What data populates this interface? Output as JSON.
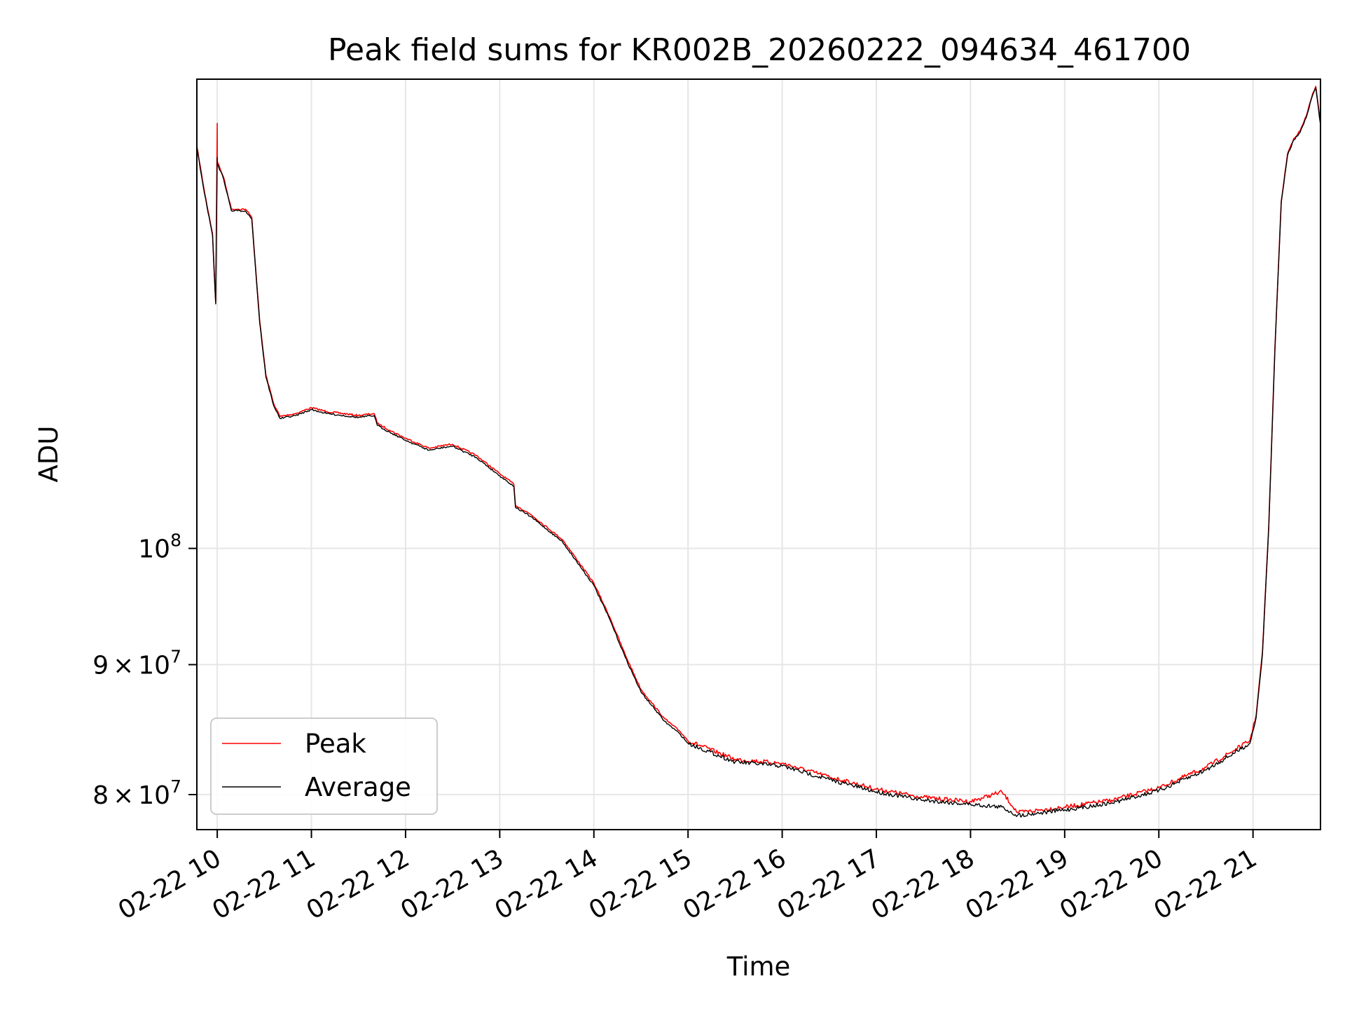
{
  "chart_data": {
    "type": "line",
    "title": "Peak field sums for KR002B_20260222_094634_461700",
    "xlabel": "Time",
    "ylabel": "ADU",
    "x_tick_labels": [
      "02-22 10",
      "02-22 11",
      "02-22 12",
      "02-22 13",
      "02-22 14",
      "02-22 15",
      "02-22 16",
      "02-22 17",
      "02-22 18",
      "02-22 19",
      "02-22 20",
      "02-22 21"
    ],
    "y_scale": "log",
    "y_ticks": [
      {
        "value": 80000000,
        "mantissa": "8",
        "times": "×",
        "base": "10",
        "exp": "7"
      },
      {
        "value": 90000000,
        "mantissa": "9",
        "times": "×",
        "base": "10",
        "exp": "7"
      },
      {
        "value": 100000000,
        "mantissa": "",
        "times": "",
        "base": "10",
        "exp": "8"
      }
    ],
    "xlim": [
      "2026-02-22 09:47",
      "2026-02-22 21:43"
    ],
    "ylim": [
      77500000,
      153000000
    ],
    "grid": true,
    "legend_position": "lower left",
    "series": [
      {
        "name": "Peak",
        "color": "#ff0000",
        "x": [
          "2026-02-22 09:47",
          "2026-02-22 09:52",
          "2026-02-22 09:57",
          "2026-02-22 09:59",
          "2026-02-22 10:00",
          "2026-02-22 10:00",
          "2026-02-22 10:04",
          "2026-02-22 10:09",
          "2026-02-22 10:13",
          "2026-02-22 10:18",
          "2026-02-22 10:22",
          "2026-02-22 10:27",
          "2026-02-22 10:31",
          "2026-02-22 10:36",
          "2026-02-22 10:40",
          "2026-02-22 10:50",
          "2026-02-22 11:00",
          "2026-02-22 11:10",
          "2026-02-22 11:30",
          "2026-02-22 11:40",
          "2026-02-22 11:42",
          "2026-02-22 11:50",
          "2026-02-22 12:00",
          "2026-02-22 12:15",
          "2026-02-22 12:25",
          "2026-02-22 12:30",
          "2026-02-22 12:45",
          "2026-02-22 13:00",
          "2026-02-22 13:09",
          "2026-02-22 13:10",
          "2026-02-22 13:20",
          "2026-02-22 13:40",
          "2026-02-22 14:00",
          "2026-02-22 14:10",
          "2026-02-22 14:20",
          "2026-02-22 14:30",
          "2026-02-22 14:45",
          "2026-02-22 14:55",
          "2026-02-22 15:00",
          "2026-02-22 15:30",
          "2026-02-22 16:00",
          "2026-02-22 16:30",
          "2026-02-22 17:00",
          "2026-02-22 17:30",
          "2026-02-22 18:00",
          "2026-02-22 18:20",
          "2026-02-22 18:30",
          "2026-02-22 19:00",
          "2026-02-22 19:30",
          "2026-02-22 20:00",
          "2026-02-22 20:30",
          "2026-02-22 20:58",
          "2026-02-22 21:02",
          "2026-02-22 21:06",
          "2026-02-22 21:10",
          "2026-02-22 21:14",
          "2026-02-22 21:18",
          "2026-02-22 21:22",
          "2026-02-22 21:26",
          "2026-02-22 21:30",
          "2026-02-22 21:34",
          "2026-02-22 21:38",
          "2026-02-22 21:40",
          "2026-02-22 21:43"
        ],
        "values": [
          144000000,
          138000000,
          133000000,
          125000000,
          147000000,
          142000000,
          140000000,
          136000000,
          136000000,
          136000000,
          135000000,
          123000000,
          117000000,
          114000000,
          112700000,
          113000000,
          113600000,
          113200000,
          112800000,
          113000000,
          112000000,
          111300000,
          110500000,
          109500000,
          109800000,
          109900000,
          108800000,
          107000000,
          106000000,
          104000000,
          103100000,
          100800000,
          96900000,
          94000000,
          90800000,
          88000000,
          85700000,
          84700000,
          84000000,
          82600000,
          82300000,
          81300000,
          80400000,
          79800000,
          79500000,
          80200000,
          78700000,
          79100000,
          79600000,
          80500000,
          82000000,
          84000000,
          86000000,
          91000000,
          102000000,
          120000000,
          137000000,
          143000000,
          145000000,
          146000000,
          148000000,
          151000000,
          152000000,
          147000000
        ]
      },
      {
        "name": "Average",
        "color": "#000000",
        "x": [
          "2026-02-22 09:47",
          "2026-02-22 09:52",
          "2026-02-22 09:57",
          "2026-02-22 09:59",
          "2026-02-22 10:00",
          "2026-02-22 10:00",
          "2026-02-22 10:04",
          "2026-02-22 10:09",
          "2026-02-22 10:13",
          "2026-02-22 10:18",
          "2026-02-22 10:22",
          "2026-02-22 10:27",
          "2026-02-22 10:31",
          "2026-02-22 10:36",
          "2026-02-22 10:40",
          "2026-02-22 10:50",
          "2026-02-22 11:00",
          "2026-02-22 11:10",
          "2026-02-22 11:30",
          "2026-02-22 11:40",
          "2026-02-22 11:42",
          "2026-02-22 11:50",
          "2026-02-22 12:00",
          "2026-02-22 12:15",
          "2026-02-22 12:25",
          "2026-02-22 12:30",
          "2026-02-22 12:45",
          "2026-02-22 13:00",
          "2026-02-22 13:09",
          "2026-02-22 13:10",
          "2026-02-22 13:20",
          "2026-02-22 13:40",
          "2026-02-22 14:00",
          "2026-02-22 14:10",
          "2026-02-22 14:20",
          "2026-02-22 14:30",
          "2026-02-22 14:45",
          "2026-02-22 14:55",
          "2026-02-22 15:00",
          "2026-02-22 15:30",
          "2026-02-22 16:00",
          "2026-02-22 16:30",
          "2026-02-22 17:00",
          "2026-02-22 17:30",
          "2026-02-22 18:00",
          "2026-02-22 18:20",
          "2026-02-22 18:30",
          "2026-02-22 19:00",
          "2026-02-22 19:30",
          "2026-02-22 20:00",
          "2026-02-22 20:30",
          "2026-02-22 20:58",
          "2026-02-22 21:02",
          "2026-02-22 21:06",
          "2026-02-22 21:10",
          "2026-02-22 21:14",
          "2026-02-22 21:18",
          "2026-02-22 21:22",
          "2026-02-22 21:26",
          "2026-02-22 21:30",
          "2026-02-22 21:34",
          "2026-02-22 21:38",
          "2026-02-22 21:40",
          "2026-02-22 21:43"
        ],
        "values": [
          143800000,
          137800000,
          132800000,
          124800000,
          142500000,
          141800000,
          139800000,
          135800000,
          135800000,
          135800000,
          134800000,
          122800000,
          116800000,
          113800000,
          112500000,
          112800000,
          113400000,
          113000000,
          112600000,
          112800000,
          111800000,
          111100000,
          110300000,
          109300000,
          109600000,
          109700000,
          108600000,
          106800000,
          105800000,
          103800000,
          102900000,
          100600000,
          96700000,
          93800000,
          90600000,
          87800000,
          85500000,
          84500000,
          83800000,
          82400000,
          82100000,
          81100000,
          80200000,
          79600000,
          79300000,
          79100000,
          78500000,
          78900000,
          79400000,
          80300000,
          81800000,
          83800000,
          85800000,
          90800000,
          101800000,
          119800000,
          136800000,
          142800000,
          144800000,
          145800000,
          147800000,
          150800000,
          151800000,
          146800000
        ]
      }
    ]
  }
}
